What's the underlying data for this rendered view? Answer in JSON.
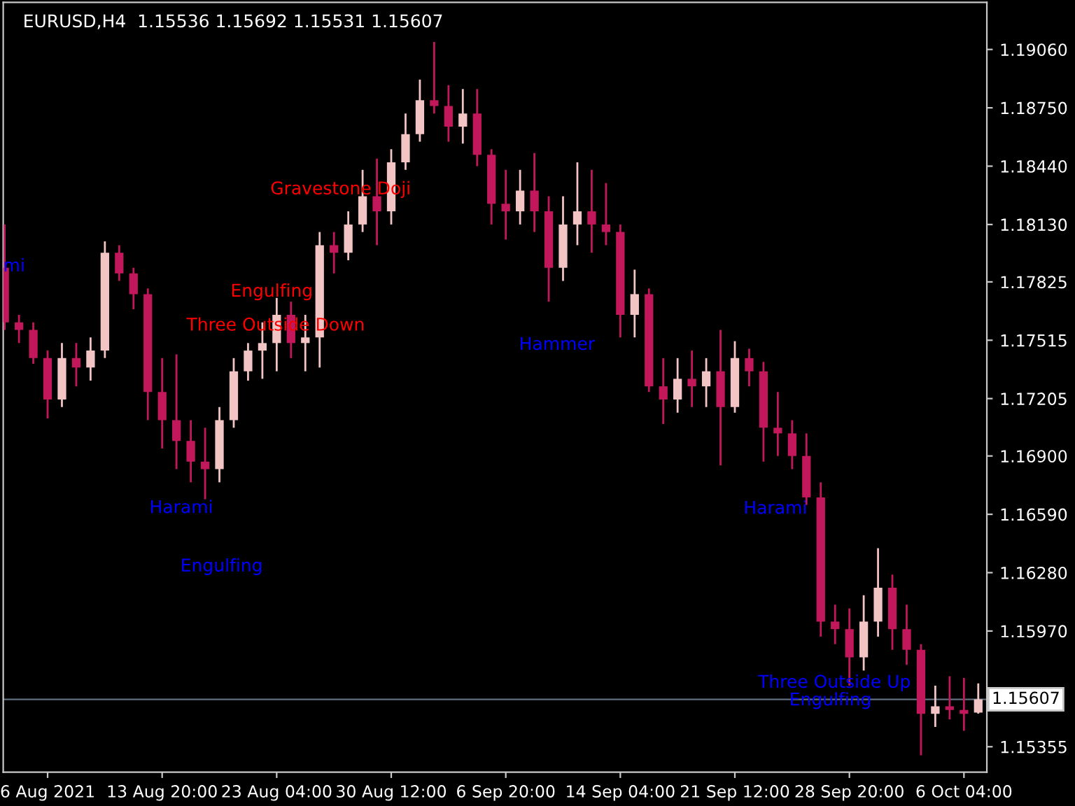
{
  "chart_data": {
    "type": "candlestick",
    "title": "EURUSD,H4  1.15536 1.15692 1.15531 1.15607",
    "categories": [
      null,
      null,
      null,
      "6 Aug 2021",
      null,
      null,
      null,
      null,
      null,
      null,
      null,
      "13 Aug 20:00",
      null,
      null,
      null,
      null,
      null,
      null,
      null,
      "23 Aug 04:00",
      null,
      null,
      null,
      null,
      null,
      null,
      null,
      "30 Aug 12:00",
      null,
      null,
      null,
      null,
      null,
      null,
      null,
      "6 Sep 20:00",
      null,
      null,
      null,
      null,
      null,
      null,
      null,
      "14 Sep 04:00",
      null,
      null,
      null,
      null,
      null,
      null,
      null,
      "21 Sep 12:00",
      null,
      null,
      null,
      null,
      null,
      null,
      null,
      "28 Sep 20:00",
      null,
      null,
      null,
      null,
      null,
      null,
      null,
      "6 Oct 04:00",
      null
    ],
    "ohlc": [
      [
        1.179,
        1.1813,
        1.1757,
        1.1761
      ],
      [
        1.1761,
        1.1765,
        1.175,
        1.1757
      ],
      [
        1.1757,
        1.1761,
        1.1739,
        1.1742
      ],
      [
        1.1742,
        1.1746,
        1.171,
        1.172
      ],
      [
        1.172,
        1.175,
        1.1716,
        1.1742
      ],
      [
        1.1742,
        1.175,
        1.1727,
        1.1737
      ],
      [
        1.1737,
        1.1753,
        1.173,
        1.1746
      ],
      [
        1.1746,
        1.1804,
        1.1742,
        1.1798
      ],
      [
        1.1798,
        1.1802,
        1.1783,
        1.1787
      ],
      [
        1.1787,
        1.179,
        1.1768,
        1.1776
      ],
      [
        1.1776,
        1.1779,
        1.1709,
        1.1724
      ],
      [
        1.1724,
        1.1742,
        1.1694,
        1.1709
      ],
      [
        1.1709,
        1.1744,
        1.1683,
        1.1698
      ],
      [
        1.1698,
        1.1709,
        1.1676,
        1.1687
      ],
      [
        1.1687,
        1.1705,
        1.1667,
        1.1683
      ],
      [
        1.1683,
        1.1716,
        1.1676,
        1.1709
      ],
      [
        1.1709,
        1.1742,
        1.1705,
        1.1735
      ],
      [
        1.1735,
        1.175,
        1.173,
        1.1746
      ],
      [
        1.1746,
        1.1761,
        1.1731,
        1.175
      ],
      [
        1.175,
        1.1774,
        1.1735,
        1.1765
      ],
      [
        1.1765,
        1.1772,
        1.1742,
        1.175
      ],
      [
        1.175,
        1.1765,
        1.1735,
        1.1753
      ],
      [
        1.1753,
        1.1809,
        1.1737,
        1.1802
      ],
      [
        1.1802,
        1.1809,
        1.1787,
        1.1798
      ],
      [
        1.1798,
        1.182,
        1.1794,
        1.1813
      ],
      [
        1.1813,
        1.1842,
        1.1809,
        1.1828
      ],
      [
        1.1828,
        1.1848,
        1.1802,
        1.182
      ],
      [
        1.182,
        1.1853,
        1.1813,
        1.1846
      ],
      [
        1.1846,
        1.1872,
        1.1842,
        1.1861
      ],
      [
        1.1861,
        1.189,
        1.1857,
        1.1879
      ],
      [
        1.1879,
        1.191,
        1.1872,
        1.1876
      ],
      [
        1.1876,
        1.1887,
        1.1857,
        1.1865
      ],
      [
        1.1865,
        1.1885,
        1.1856,
        1.1872
      ],
      [
        1.1872,
        1.1885,
        1.1844,
        1.185
      ],
      [
        1.185,
        1.1853,
        1.1813,
        1.1824
      ],
      [
        1.1824,
        1.1842,
        1.1805,
        1.182
      ],
      [
        1.182,
        1.1842,
        1.1813,
        1.1831
      ],
      [
        1.1831,
        1.1851,
        1.1809,
        1.182
      ],
      [
        1.182,
        1.1828,
        1.1772,
        1.179
      ],
      [
        1.179,
        1.1828,
        1.1783,
        1.1813
      ],
      [
        1.1813,
        1.1846,
        1.1802,
        1.182
      ],
      [
        1.182,
        1.1842,
        1.1798,
        1.1813
      ],
      [
        1.1813,
        1.1835,
        1.1802,
        1.1809
      ],
      [
        1.1809,
        1.1813,
        1.1753,
        1.1765
      ],
      [
        1.1765,
        1.1789,
        1.1753,
        1.1776
      ],
      [
        1.1776,
        1.1779,
        1.1724,
        1.1727
      ],
      [
        1.1727,
        1.1742,
        1.1707,
        1.172
      ],
      [
        1.172,
        1.1742,
        1.1713,
        1.1731
      ],
      [
        1.1731,
        1.1746,
        1.1716,
        1.1727
      ],
      [
        1.1727,
        1.1742,
        1.1716,
        1.1735
      ],
      [
        1.1735,
        1.1757,
        1.1685,
        1.1716
      ],
      [
        1.1716,
        1.1751,
        1.1713,
        1.1742
      ],
      [
        1.1742,
        1.1747,
        1.1727,
        1.1735
      ],
      [
        1.1735,
        1.174,
        1.1687,
        1.1705
      ],
      [
        1.1705,
        1.1724,
        1.169,
        1.1702
      ],
      [
        1.1702,
        1.1709,
        1.1683,
        1.169
      ],
      [
        1.169,
        1.1702,
        1.1664,
        1.1668
      ],
      [
        1.1668,
        1.1676,
        1.1594,
        1.1602
      ],
      [
        1.1602,
        1.1611,
        1.159,
        1.1598
      ],
      [
        1.1598,
        1.1609,
        1.1568,
        1.1583
      ],
      [
        1.1583,
        1.1616,
        1.1576,
        1.1602
      ],
      [
        1.1602,
        1.1641,
        1.1594,
        1.162
      ],
      [
        1.162,
        1.1627,
        1.1587,
        1.1598
      ],
      [
        1.1598,
        1.1611,
        1.1579,
        1.1587
      ],
      [
        1.1587,
        1.159,
        1.1531,
        1.1553
      ],
      [
        1.1553,
        1.1568,
        1.1546,
        1.1557
      ],
      [
        1.1557,
        1.1573,
        1.155,
        1.1555
      ],
      [
        1.1555,
        1.1572,
        1.1544,
        1.1553
      ],
      [
        1.15536,
        1.15692,
        1.15531,
        1.15607
      ]
    ],
    "colors": [
      "#c2185b",
      "#c2185b",
      "#c2185b",
      "#c2185b",
      "#f2c4c4",
      "#c2185b",
      "#f2c4c4",
      "#f2c4c4",
      "#c2185b",
      "#c2185b",
      "#c2185b",
      "#c2185b",
      "#c2185b",
      "#c2185b",
      "#c2185b",
      "#f2c4c4",
      "#f2c4c4",
      "#f2c4c4",
      "#f2c4c4",
      "#f2c4c4",
      "#c2185b",
      "#f2c4c4",
      "#f2c4c4",
      "#c2185b",
      "#f2c4c4",
      "#f2c4c4",
      "#c2185b",
      "#f2c4c4",
      "#f2c4c4",
      "#f2c4c4",
      "#c2185b",
      "#c2185b",
      "#f2c4c4",
      "#c2185b",
      "#c2185b",
      "#c2185b",
      "#f2c4c4",
      "#c2185b",
      "#c2185b",
      "#f2c4c4",
      "#f2c4c4",
      "#c2185b",
      "#c2185b",
      "#c2185b",
      "#f2c4c4",
      "#c2185b",
      "#c2185b",
      "#f2c4c4",
      "#c2185b",
      "#f2c4c4",
      "#c2185b",
      "#f2c4c4",
      "#c2185b",
      "#c2185b",
      "#c2185b",
      "#c2185b",
      "#c2185b",
      "#c2185b",
      "#c2185b",
      "#c2185b",
      "#f2c4c4",
      "#f2c4c4",
      "#c2185b",
      "#c2185b",
      "#c2185b",
      "#f2c4c4",
      "#c2185b",
      "#c2185b",
      "#f2c4c4"
    ],
    "ylim": [
      1.1522,
      1.1931
    ],
    "yticks": [
      {
        "value": 1.1906,
        "label": "1.19060"
      },
      {
        "value": 1.1875,
        "label": "1.18750"
      },
      {
        "value": 1.1844,
        "label": "1.18440"
      },
      {
        "value": 1.1813,
        "label": "1.18130"
      },
      {
        "value": 1.17825,
        "label": "1.17825"
      },
      {
        "value": 1.17515,
        "label": "1.17515"
      },
      {
        "value": 1.17205,
        "label": "1.17205"
      },
      {
        "value": 1.169,
        "label": "1.16900"
      },
      {
        "value": 1.1659,
        "label": "1.16590"
      },
      {
        "value": 1.1628,
        "label": "1.16280"
      },
      {
        "value": 1.1597,
        "label": "1.15970"
      },
      {
        "value": 1.15355,
        "label": "1.15355"
      }
    ],
    "ref_lines": [
      {
        "axis": "y",
        "value": 1.15607,
        "label": "1.15607",
        "color": "#5f6f7f"
      }
    ],
    "annotations": [
      "mi",
      "Gravestone Doji",
      "Engulfing",
      "Three Outside Down",
      "Hammer",
      "Harami",
      "Engulfing",
      "Harami",
      "Three Outside Up",
      "Engulfing"
    ],
    "grid": false,
    "legend": false
  }
}
